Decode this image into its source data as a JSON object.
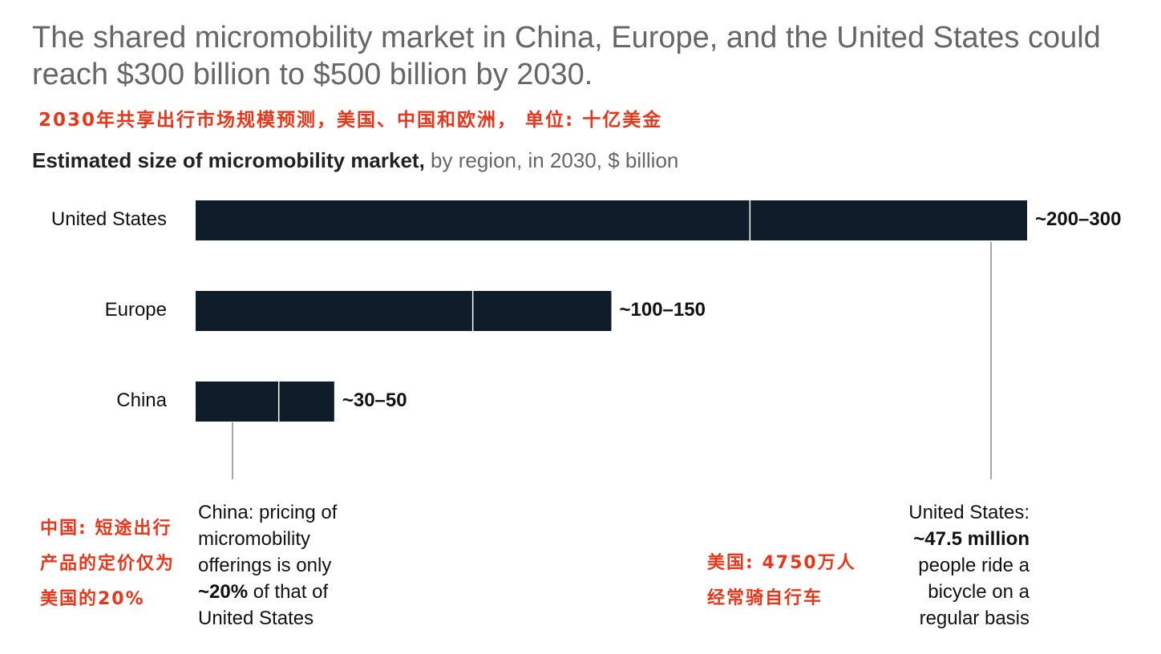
{
  "title": "The shared micromobility market in China, Europe, and the United States could reach $300 billion to $500 billion by 2030.",
  "cn_subtitle": "2030年共享出行市场规模预测，美国、中国和欧洲， 单位: 十亿美金",
  "subtitle": {
    "bold": "Estimated size of micromobility market,",
    "rest": " by region, in 2030, $ billion"
  },
  "chart_data": {
    "type": "bar",
    "orientation": "horizontal",
    "categories": [
      "United States",
      "Europe",
      "China"
    ],
    "series": [
      {
        "low": [
          200,
          100,
          30
        ],
        "high": [
          300,
          150,
          50
        ]
      }
    ],
    "value_labels": [
      "~200–300",
      "~100–150",
      "~30–50"
    ],
    "xlim": [
      0,
      300
    ],
    "bar_color": "#0f1c2a"
  },
  "notes": {
    "china": {
      "line1": "China: pricing of",
      "line2": "micromobility",
      "line3": "offerings is only",
      "bold": "~20%",
      "rest": " of that of",
      "line5": "United States"
    },
    "us": {
      "line1": "United States:",
      "bold": "~47.5 million",
      "line3": "people ride a",
      "line4": "bicycle on a",
      "line5": "regular basis"
    }
  },
  "cn_notes": {
    "china": [
      "中国: 短途出行",
      "产品的定价仅为",
      "美国的20%"
    ],
    "us": [
      "美国: 4750万人",
      "经常骑自行车"
    ]
  }
}
